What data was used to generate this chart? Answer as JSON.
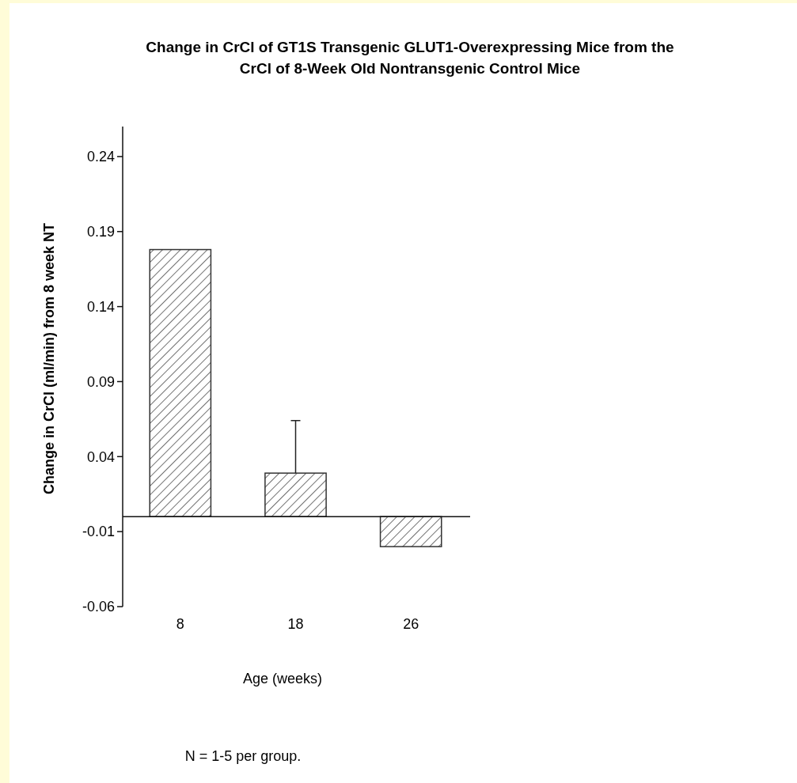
{
  "chart_data": {
    "type": "bar",
    "title": "Change in CrCl of GT1S Transgenic GLUT1-Overexpressing Mice from the CrCl  of 8-Week Old Nontransgenic Control Mice",
    "xlabel": "Age (weeks)",
    "ylabel": "Change in CrCl (ml/min) from 8 week NT",
    "categories": [
      "8",
      "18",
      "26"
    ],
    "values": [
      0.178,
      0.029,
      -0.02
    ],
    "errors": [
      null,
      0.035,
      null
    ],
    "color": "#333333",
    "ylim": [
      -0.06,
      0.26
    ],
    "yticks": [
      0.24,
      0.19,
      0.14,
      0.09,
      0.04,
      -0.01,
      -0.06
    ],
    "ref_lines": [
      {
        "axis": "y",
        "value": 0
      }
    ],
    "annotations": [
      "N = 1-5 per group."
    ]
  }
}
